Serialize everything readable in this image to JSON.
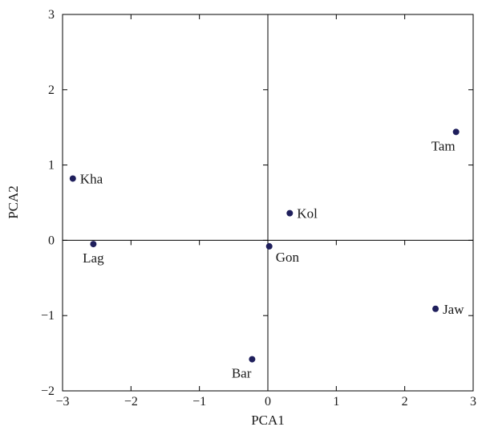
{
  "chart_data": {
    "type": "scatter",
    "title": "",
    "xlabel": "PCA1",
    "ylabel": "PCA2",
    "xlim": [
      -3,
      3
    ],
    "ylim": [
      -2,
      3
    ],
    "x_ticks": [
      "−3",
      "−2",
      "−1",
      "0",
      "1",
      "2",
      "3"
    ],
    "y_ticks": [
      "−2",
      "−1",
      "0",
      "1",
      "2",
      "3"
    ],
    "grid": false,
    "zero_lines": true,
    "marker_color": "#1f1f5c",
    "points": [
      {
        "label": "Kha",
        "x": -2.85,
        "y": 0.82,
        "label_pos": "right"
      },
      {
        "label": "Lag",
        "x": -2.55,
        "y": -0.05,
        "label_pos": "below"
      },
      {
        "label": "Bar",
        "x": -0.23,
        "y": -1.58,
        "label_pos": "below-left"
      },
      {
        "label": "Gon",
        "x": 0.02,
        "y": -0.08,
        "label_pos": "below-right"
      },
      {
        "label": "Kol",
        "x": 0.32,
        "y": 0.36,
        "label_pos": "right"
      },
      {
        "label": "Jaw",
        "x": 2.45,
        "y": -0.91,
        "label_pos": "right"
      },
      {
        "label": "Tam",
        "x": 2.75,
        "y": 1.44,
        "label_pos": "below-left"
      }
    ]
  }
}
